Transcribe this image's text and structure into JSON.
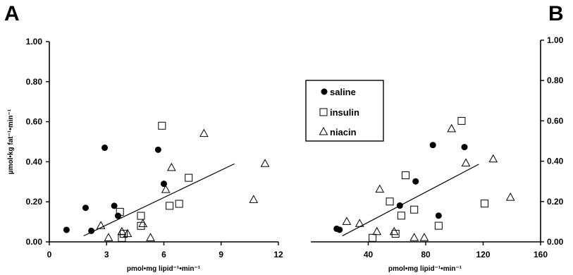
{
  "figure": {
    "panel_a_letter": "A",
    "panel_b_letter": "B"
  },
  "legend": {
    "position": "center",
    "entries": [
      {
        "label": "saline",
        "marker": "filled-circle"
      },
      {
        "label": "insulin",
        "marker": "open-square"
      },
      {
        "label": "niacin",
        "marker": "open-triangle"
      }
    ]
  },
  "chart_data": [
    {
      "type": "scatter",
      "panel": "A",
      "ylabel": "µmol•kg fat⁻¹•min⁻¹",
      "xlabel": "pmol•mg lipid⁻¹•min⁻¹",
      "xlim": [
        0,
        12
      ],
      "ylim": [
        0,
        1.0
      ],
      "x_ticks": [
        0,
        3,
        6,
        9,
        12
      ],
      "y_ticks": [
        0.0,
        0.2,
        0.4,
        0.6,
        0.8,
        1.0
      ],
      "x_tick_labels": [
        "0",
        "3",
        "6",
        "9",
        "12"
      ],
      "y_tick_labels": [
        "0.00",
        "0.20",
        "0.40",
        "0.60",
        "0.80",
        "1.00"
      ],
      "y_axis_side": "left",
      "series": [
        {
          "name": "saline",
          "marker": "filled-circle",
          "x": [
            0.9,
            1.9,
            2.2,
            2.9,
            3.4,
            3.6,
            5.7,
            6.0
          ],
          "y": [
            0.06,
            0.17,
            0.055,
            0.47,
            0.18,
            0.13,
            0.46,
            0.29
          ]
        },
        {
          "name": "insulin",
          "marker": "open-square",
          "x": [
            3.7,
            3.8,
            3.9,
            4.8,
            4.8,
            5.9,
            6.3,
            6.8,
            7.3
          ],
          "y": [
            0.15,
            0.02,
            0.04,
            0.13,
            0.08,
            0.58,
            0.18,
            0.19,
            0.32
          ]
        },
        {
          "name": "niacin",
          "marker": "open-triangle",
          "x": [
            2.7,
            3.1,
            3.8,
            4.1,
            4.9,
            5.3,
            6.1,
            6.4,
            8.1,
            10.7,
            11.3
          ],
          "y": [
            0.08,
            0.02,
            0.05,
            0.04,
            0.09,
            0.02,
            0.26,
            0.37,
            0.54,
            0.21,
            0.39
          ]
        }
      ],
      "trendline": {
        "x": [
          1.8,
          9.7
        ],
        "y": [
          0.03,
          0.39
        ]
      }
    },
    {
      "type": "scatter",
      "panel": "B",
      "ylabel": "",
      "xlabel": "pmol•mg lipid⁻¹•min⁻¹",
      "xlim": [
        0,
        160
      ],
      "ylim": [
        0,
        1.0
      ],
      "x_ticks": [
        40,
        80,
        120,
        160
      ],
      "y_ticks": [
        0.0,
        0.2,
        0.4,
        0.6,
        0.8,
        1.0
      ],
      "x_tick_labels": [
        "40",
        "80",
        "120",
        "160"
      ],
      "y_tick_labels": [
        "0.00",
        "0.20",
        "0.40",
        "0.60",
        "0.80",
        "1.00"
      ],
      "y_axis_side": "right",
      "series": [
        {
          "name": "saline",
          "marker": "filled-circle",
          "x": [
            18,
            20,
            62,
            73,
            85,
            89,
            107
          ],
          "y": [
            0.065,
            0.06,
            0.18,
            0.3,
            0.48,
            0.13,
            0.47
          ]
        },
        {
          "name": "insulin",
          "marker": "open-square",
          "x": [
            43,
            55,
            59,
            63,
            66,
            72,
            89,
            105,
            121
          ],
          "y": [
            0.02,
            0.2,
            0.04,
            0.13,
            0.33,
            0.16,
            0.08,
            0.6,
            0.19
          ]
        },
        {
          "name": "niacin",
          "marker": "open-triangle",
          "x": [
            25,
            34,
            46,
            48,
            58,
            72,
            79,
            98,
            108,
            127,
            139
          ],
          "y": [
            0.1,
            0.09,
            0.05,
            0.26,
            0.05,
            0.02,
            0.02,
            0.56,
            0.39,
            0.41,
            0.22
          ]
        }
      ],
      "trendline": {
        "x": [
          22,
          117
        ],
        "y": [
          0.03,
          0.385
        ]
      }
    }
  ]
}
